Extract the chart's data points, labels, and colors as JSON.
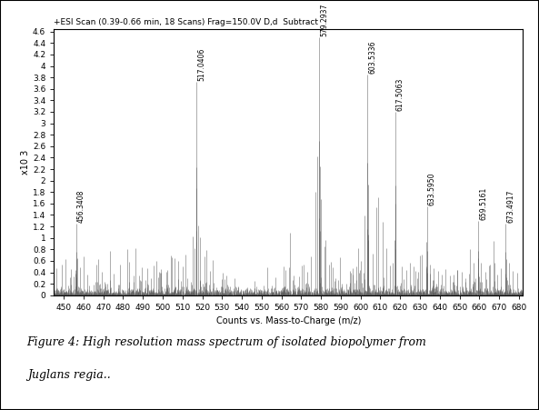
{
  "title_text": "+ESI Scan (0.39-0.66 min, 18 Scans) Frag=150.0V D,d  Subtract",
  "xlabel": "Counts vs. Mass-to-Charge (m/z)",
  "ylabel": "x10 3",
  "xmin": 445,
  "xmax": 682,
  "ymin": 0,
  "ymax": 4.6,
  "xticks": [
    450,
    460,
    470,
    480,
    490,
    500,
    510,
    520,
    530,
    540,
    550,
    560,
    570,
    580,
    590,
    600,
    610,
    620,
    630,
    640,
    650,
    660,
    670,
    680
  ],
  "yticks": [
    0,
    0.2,
    0.4,
    0.6,
    0.8,
    1.0,
    1.2,
    1.4,
    1.6,
    1.8,
    2.0,
    2.2,
    2.4,
    2.6,
    2.8,
    3.0,
    3.2,
    3.4,
    3.6,
    3.8,
    4.0,
    4.2,
    4.4,
    4.6
  ],
  "caption": "Figure 4: High resolution mass spectrum of isolated biopolymer from\nJuglans regia..",
  "bg_color": "#ffffff",
  "plot_bg_color": "#ffffff",
  "line_color": "#555555",
  "major_peaks": [
    {
      "mz": 456.3408,
      "intensity": 1.25,
      "label": "456.3408"
    },
    {
      "mz": 517.0406,
      "intensity": 3.72,
      "label": "517.0406"
    },
    {
      "mz": 579.2937,
      "intensity": 4.5,
      "label": "579.2937"
    },
    {
      "mz": 603.5336,
      "intensity": 3.85,
      "label": "603.5336"
    },
    {
      "mz": 617.5063,
      "intensity": 3.2,
      "label": "617.5063"
    },
    {
      "mz": 633.595,
      "intensity": 1.55,
      "label": "633.5950"
    },
    {
      "mz": 659.5161,
      "intensity": 1.3,
      "label": "659.5161"
    },
    {
      "mz": 673.4917,
      "intensity": 1.25,
      "label": "673.4917"
    }
  ],
  "noise_seed": 42,
  "figure_width": 5.93,
  "figure_height": 4.51,
  "dpi": 100
}
